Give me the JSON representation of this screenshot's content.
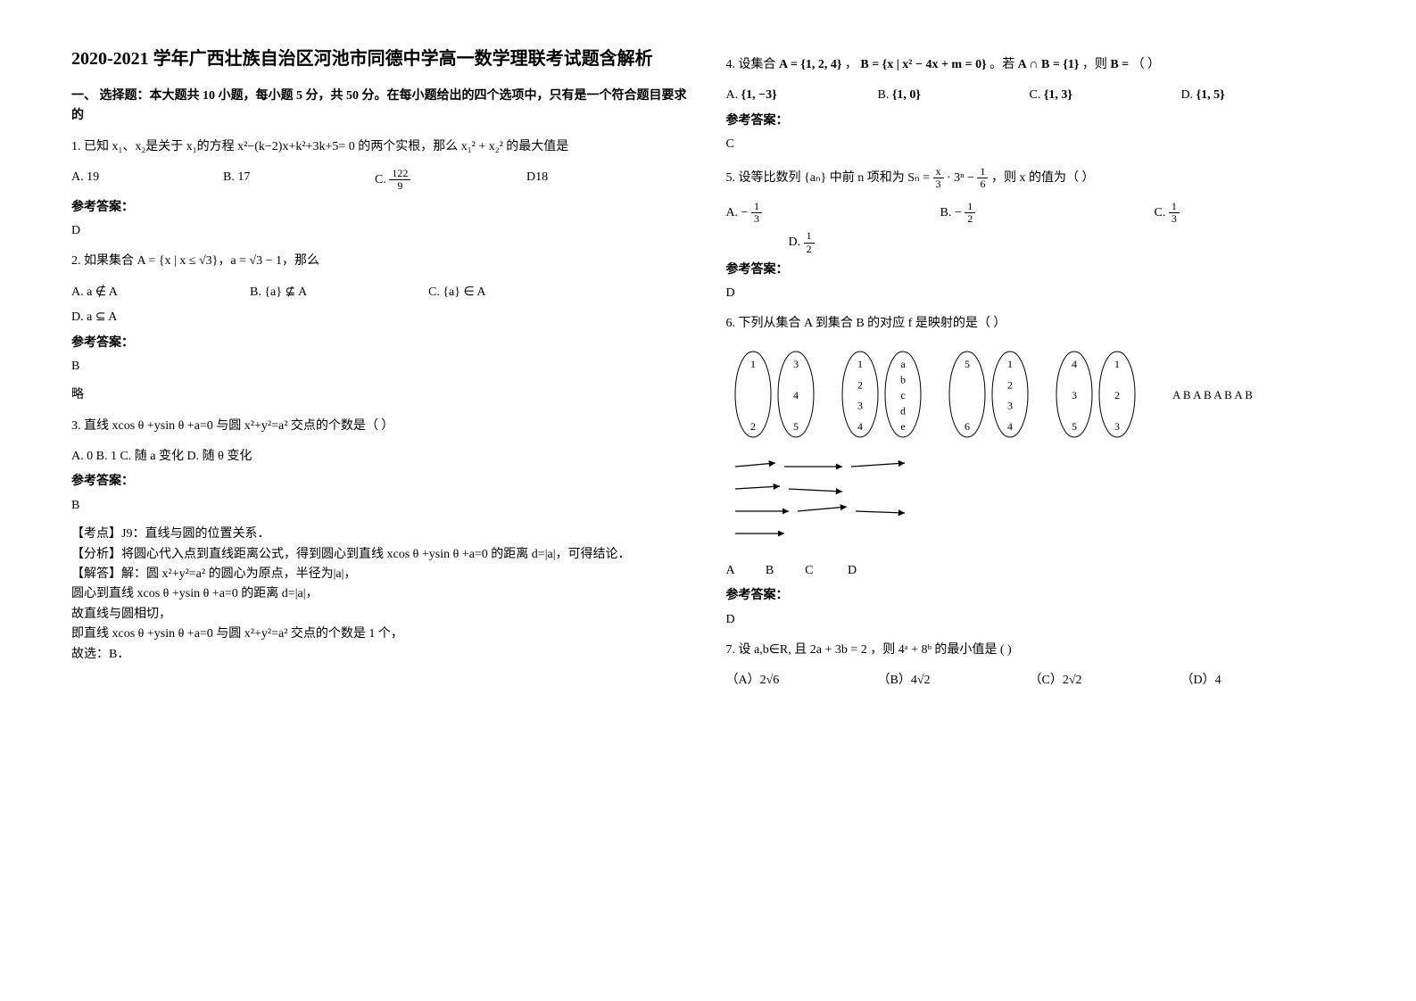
{
  "title": "2020-2021 学年广西壮族自治区河池市同德中学高一数学理联考试题含解析",
  "section1": "一、 选择题：本大题共 10 小题，每小题 5 分，共 50 分。在每小题给出的四个选项中，只有是一个符合题目要求的",
  "answer_label": "参考答案：",
  "q1": {
    "stem_pre": "1. 已知 x₁、x₂是关于 x₁的方程 x²−(k−2)x+k²+3k+5= 0 的两个实根，那么",
    "stem_post": "的最大值是",
    "x1sq_plus_x2sq": "x₁² + x₂²",
    "A": "A. 19",
    "B": "B. 17",
    "C_label": "C.",
    "C_num": "122",
    "C_den": "9",
    "D": "D18",
    "answer": "D"
  },
  "q2": {
    "stem": "2. 如果集合 A = {x | x ≤ √3}，a = √3 − 1，那么",
    "A": "A.  a ∉ A",
    "B": "B.  {a} ⊈ A",
    "C": "C.  {a} ∈ A",
    "D": "D.  a ⊆ A",
    "answer": "B",
    "note": "略"
  },
  "q3": {
    "stem": "3. 直线 xcos θ +ysin θ +a=0 与圆 x²+y²=a² 交点的个数是（    ）",
    "opts": "A. 0   B. 1   C. 随 a 变化   D. 随 θ 变化",
    "answer": "B",
    "expl1": "【考点】J9：直线与圆的位置关系．",
    "expl2": "【分析】将圆心代入点到直线距离公式，得到圆心到直线 xcos θ +ysin θ +a=0 的距离 d=|a|，可得结论．",
    "expl3": "【解答】解：圆 x²+y²=a² 的圆心为原点，半径为|a|，",
    "expl4": "圆心到直线 xcos θ +ysin θ +a=0 的距离 d=|a|，",
    "expl5": "故直线与圆相切，",
    "expl6": "即直线 xcos θ +ysin θ +a=0 与圆 x²+y²=a² 交点的个数是 1 个，",
    "expl7": "故选：B．"
  },
  "q4": {
    "stem_pre": "4. 设集合",
    "setA": "A = {1, 2, 4}",
    "comma1": "，",
    "setB": "B = {x | x² − 4x + m = 0}",
    "mid": "。若",
    "AinterB": "A ∩ B = {1}",
    "mid2": "，则",
    "Beq": "B =",
    "paren": "（      ）",
    "A_lbl": "A.",
    "A": "{1, −3}",
    "B_lbl": "B.",
    "Bv": "{1, 0}",
    "C_lbl": "C.",
    "C": "{1, 3}",
    "D_lbl": "D.",
    "D": "{1, 5}",
    "answer": "C"
  },
  "q5": {
    "stem_pre": "5. 设等比数列",
    "an": "{aₙ}",
    "mid": "中前 n 项和为",
    "Sn_lhs": "Sₙ =",
    "x_over_3": "x",
    "x_over_3_den": "3",
    "dot3n": "· 3ⁿ −",
    "one_sixth_num": "1",
    "one_sixth_den": "6",
    "stem_post": "，则 x 的值为（   ）",
    "A_pre": "A. −",
    "A_num": "1",
    "A_den": "3",
    "B_pre": "B. −",
    "B_num": "1",
    "B_den": "2",
    "C_pre": "C.",
    "C_num": "1",
    "C_den": "3",
    "D_pre": "D.",
    "D_num": "1",
    "D_den": "2",
    "answer": "D"
  },
  "q6": {
    "stem": "6. 下列从集合 A 到集合 B 的对应 f 是映射的是（    ）",
    "labels_row1": "A     B       A       B         A    B      A    B",
    "labels_row2": "A          B          C           D",
    "answer": "D",
    "ovals": {
      "A1": [
        "1",
        "2"
      ],
      "A2": [
        "3",
        "4",
        "5"
      ],
      "B1": [
        "1",
        "2",
        "3",
        "4"
      ],
      "B2": [
        "a",
        "b",
        "c",
        "d",
        "e"
      ],
      "C1": [
        "5",
        "6"
      ],
      "C2": [
        "1",
        "2",
        "3",
        "4"
      ],
      "D1": [
        "4",
        "3",
        "5"
      ],
      "D2": [
        "1",
        "2",
        "3"
      ]
    }
  },
  "q7": {
    "stem_pre": "7. 设 a,b∈R, 且",
    "cond": "2a + 3b = 2",
    "mid": "，则",
    "expr": "4ᵃ + 8ᵇ",
    "stem_post": "的最小值是                  (   )",
    "A": "（A）2√6",
    "B": "（B）4√2",
    "C": "（C）2√2",
    "D": "（D）4"
  }
}
